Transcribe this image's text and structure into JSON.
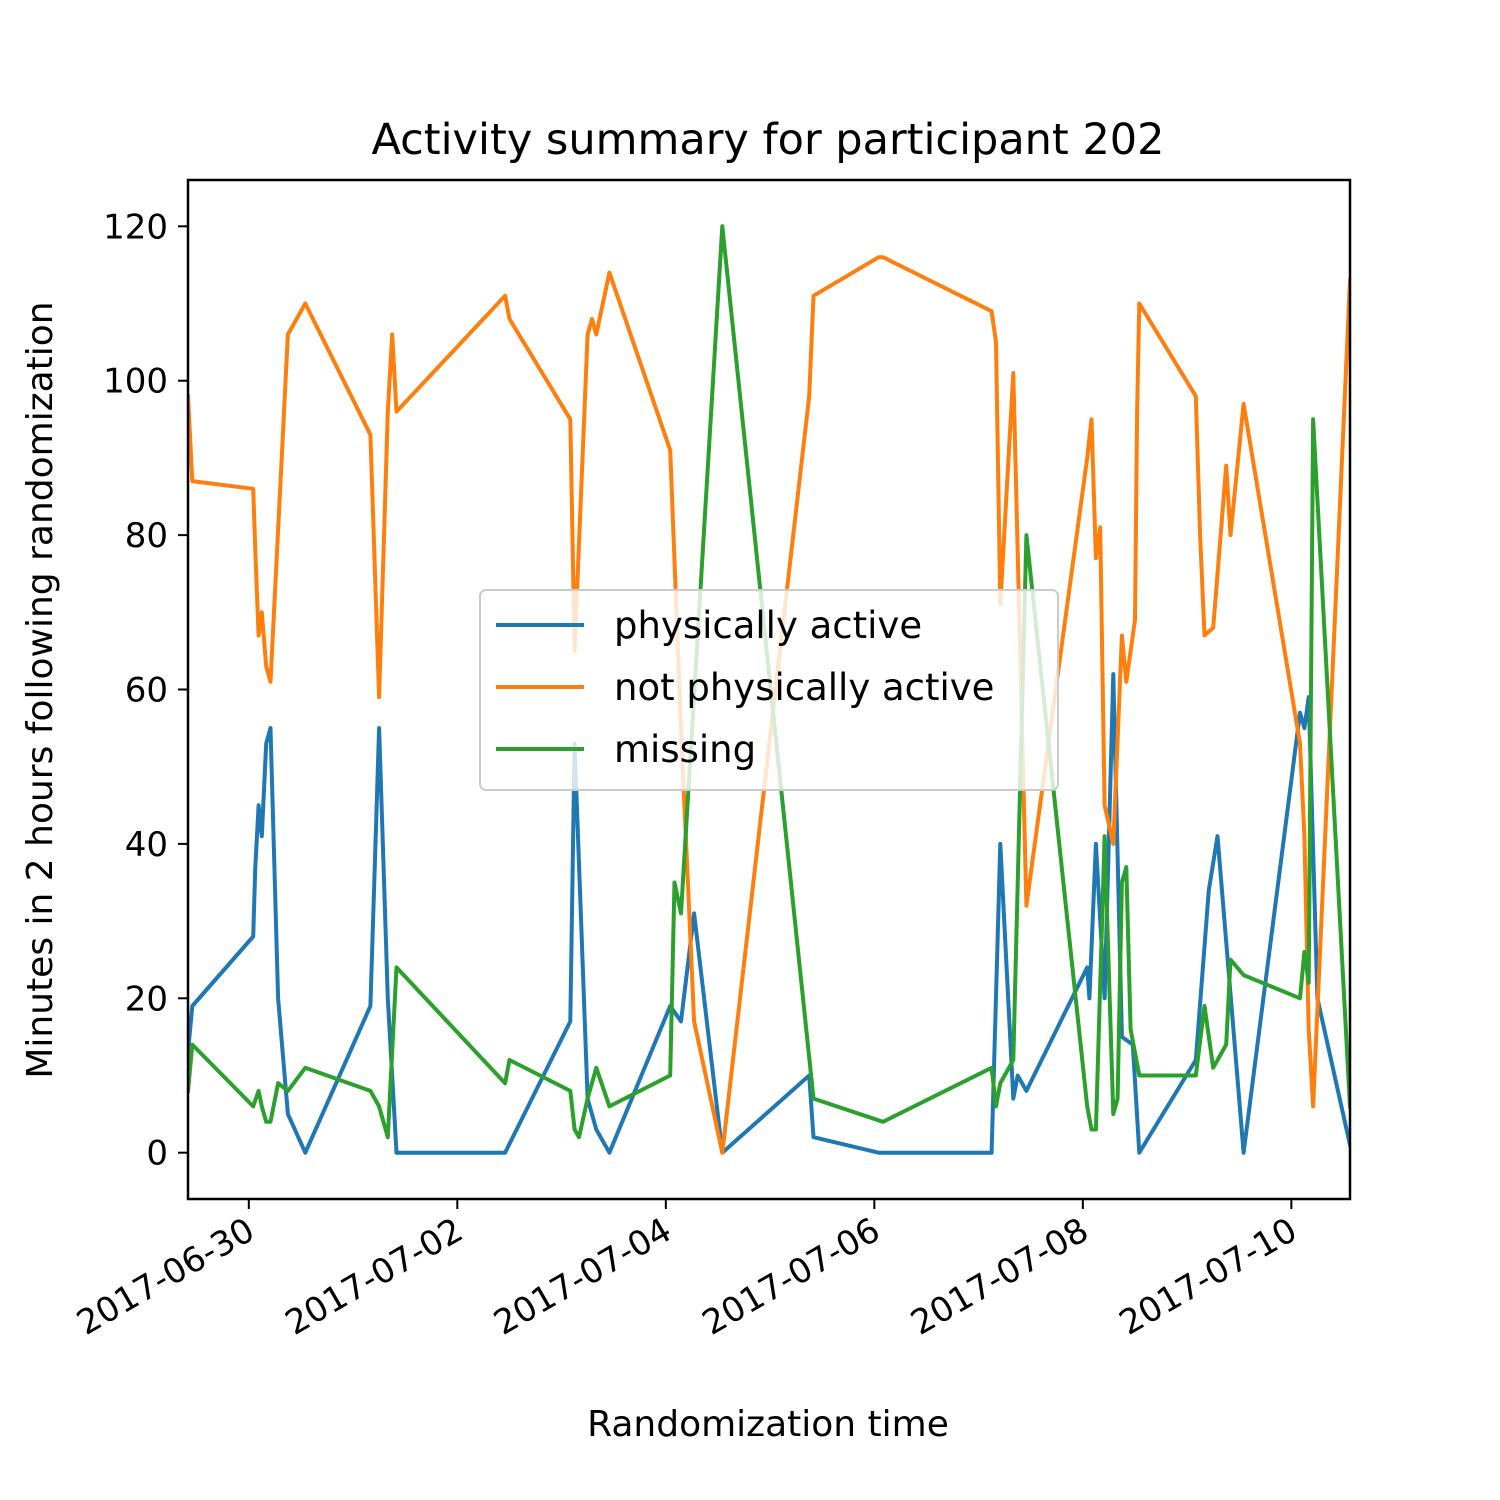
{
  "chart_data": {
    "type": "line",
    "title": "Activity summary for participant 202",
    "xlabel": "Randomization time",
    "ylabel": "Minutes in 2 hours following randomization",
    "xlim": [
      "2017-06-29T10:00",
      "2017-07-10T13:30"
    ],
    "ylim": [
      -6,
      126
    ],
    "x_ticks": [
      "2017-06-30",
      "2017-07-02",
      "2017-07-04",
      "2017-07-06",
      "2017-07-08",
      "2017-07-10"
    ],
    "y_ticks": [
      0,
      20,
      40,
      60,
      80,
      100,
      120
    ],
    "legend_position": "center",
    "grid": false,
    "series": [
      {
        "name": "physically active",
        "color": "#1f77b4",
        "points": [
          [
            "2017-06-29T10:00",
            13
          ],
          [
            "2017-06-29T11:00",
            19
          ],
          [
            "2017-06-30T01:00",
            28
          ],
          [
            "2017-06-30T01:30",
            37
          ],
          [
            "2017-06-30T02:15",
            45
          ],
          [
            "2017-06-30T03:00",
            41
          ],
          [
            "2017-06-30T04:00",
            53
          ],
          [
            "2017-06-30T05:00",
            55
          ],
          [
            "2017-06-30T06:45",
            20
          ],
          [
            "2017-06-30T09:00",
            5
          ],
          [
            "2017-06-30T13:00",
            0
          ],
          [
            "2017-07-01T04:00",
            19
          ],
          [
            "2017-07-01T06:00",
            55
          ],
          [
            "2017-07-01T08:00",
            20
          ],
          [
            "2017-07-01T10:00",
            0
          ],
          [
            "2017-07-02T11:00",
            0
          ],
          [
            "2017-07-03T02:00",
            17
          ],
          [
            "2017-07-03T03:00",
            53
          ],
          [
            "2017-07-03T06:00",
            7
          ],
          [
            "2017-07-03T08:00",
            3
          ],
          [
            "2017-07-03T11:00",
            0
          ],
          [
            "2017-07-04T01:00",
            19
          ],
          [
            "2017-07-04T03:30",
            17
          ],
          [
            "2017-07-04T06:30",
            31
          ],
          [
            "2017-07-04T13:00",
            0
          ],
          [
            "2017-07-05T09:00",
            10
          ],
          [
            "2017-07-05T10:00",
            2
          ],
          [
            "2017-07-06T01:00",
            0
          ],
          [
            "2017-07-07T03:00",
            0
          ],
          [
            "2017-07-07T05:00",
            40
          ],
          [
            "2017-07-07T08:00",
            7
          ],
          [
            "2017-07-07T09:00",
            10
          ],
          [
            "2017-07-07T11:00",
            8
          ],
          [
            "2017-07-08T01:00",
            24
          ],
          [
            "2017-07-08T01:30",
            20
          ],
          [
            "2017-07-08T03:00",
            40
          ],
          [
            "2017-07-08T05:00",
            20
          ],
          [
            "2017-07-08T07:00",
            62
          ],
          [
            "2017-07-08T09:00",
            15
          ],
          [
            "2017-07-08T11:30",
            14
          ],
          [
            "2017-07-08T13:00",
            0
          ],
          [
            "2017-07-09T02:00",
            12
          ],
          [
            "2017-07-09T05:00",
            34
          ],
          [
            "2017-07-09T07:00",
            41
          ],
          [
            "2017-07-09T13:00",
            0
          ],
          [
            "2017-07-10T02:00",
            57
          ],
          [
            "2017-07-10T03:00",
            55
          ],
          [
            "2017-07-10T04:00",
            59
          ],
          [
            "2017-07-10T06:00",
            20
          ],
          [
            "2017-07-10T13:30",
            1
          ]
        ]
      },
      {
        "name": "not physically active",
        "color": "#ff7f0e",
        "points": [
          [
            "2017-06-29T10:00",
            98
          ],
          [
            "2017-06-29T11:00",
            87
          ],
          [
            "2017-06-30T01:00",
            86
          ],
          [
            "2017-06-30T01:30",
            78
          ],
          [
            "2017-06-30T02:15",
            67
          ],
          [
            "2017-06-30T03:00",
            70
          ],
          [
            "2017-06-30T04:00",
            63
          ],
          [
            "2017-06-30T05:00",
            61
          ],
          [
            "2017-06-30T09:00",
            106
          ],
          [
            "2017-06-30T11:00",
            108
          ],
          [
            "2017-06-30T13:00",
            110
          ],
          [
            "2017-07-01T04:00",
            93
          ],
          [
            "2017-07-01T06:00",
            59
          ],
          [
            "2017-07-01T08:00",
            96
          ],
          [
            "2017-07-01T09:00",
            106
          ],
          [
            "2017-07-01T10:00",
            96
          ],
          [
            "2017-07-02T11:00",
            111
          ],
          [
            "2017-07-02T12:00",
            108
          ],
          [
            "2017-07-03T02:00",
            95
          ],
          [
            "2017-07-03T03:00",
            65
          ],
          [
            "2017-07-03T06:00",
            106
          ],
          [
            "2017-07-03T07:00",
            108
          ],
          [
            "2017-07-03T08:00",
            106
          ],
          [
            "2017-07-03T11:00",
            114
          ],
          [
            "2017-07-04T01:00",
            91
          ],
          [
            "2017-07-04T03:30",
            55
          ],
          [
            "2017-07-04T06:30",
            17
          ],
          [
            "2017-07-04T13:00",
            0
          ],
          [
            "2017-07-05T09:00",
            98
          ],
          [
            "2017-07-05T10:00",
            111
          ],
          [
            "2017-07-06T01:00",
            116
          ],
          [
            "2017-07-06T02:00",
            116
          ],
          [
            "2017-07-07T03:00",
            109
          ],
          [
            "2017-07-07T04:00",
            105
          ],
          [
            "2017-07-07T05:00",
            71
          ],
          [
            "2017-07-07T08:00",
            101
          ],
          [
            "2017-07-07T11:00",
            32
          ],
          [
            "2017-07-08T01:00",
            90
          ],
          [
            "2017-07-08T02:00",
            95
          ],
          [
            "2017-07-08T03:00",
            77
          ],
          [
            "2017-07-08T04:00",
            81
          ],
          [
            "2017-07-08T05:00",
            45
          ],
          [
            "2017-07-08T07:00",
            40
          ],
          [
            "2017-07-08T09:00",
            67
          ],
          [
            "2017-07-08T10:00",
            61
          ],
          [
            "2017-07-08T12:00",
            69
          ],
          [
            "2017-07-08T12:30",
            96
          ],
          [
            "2017-07-08T13:00",
            110
          ],
          [
            "2017-07-09T02:00",
            98
          ],
          [
            "2017-07-09T03:00",
            80
          ],
          [
            "2017-07-09T04:00",
            67
          ],
          [
            "2017-07-09T06:00",
            68
          ],
          [
            "2017-07-09T09:00",
            89
          ],
          [
            "2017-07-09T10:00",
            80
          ],
          [
            "2017-07-09T13:00",
            97
          ],
          [
            "2017-07-10T02:00",
            53
          ],
          [
            "2017-07-10T03:00",
            41
          ],
          [
            "2017-07-10T04:00",
            16
          ],
          [
            "2017-07-10T05:00",
            6
          ],
          [
            "2017-07-10T13:30",
            113
          ]
        ]
      },
      {
        "name": "missing",
        "color": "#2ca02c",
        "points": [
          [
            "2017-06-29T10:00",
            8
          ],
          [
            "2017-06-29T11:00",
            14
          ],
          [
            "2017-06-30T01:00",
            6
          ],
          [
            "2017-06-30T02:15",
            8
          ],
          [
            "2017-06-30T03:00",
            6
          ],
          [
            "2017-06-30T04:00",
            4
          ],
          [
            "2017-06-30T05:00",
            4
          ],
          [
            "2017-06-30T06:45",
            9
          ],
          [
            "2017-06-30T09:00",
            8
          ],
          [
            "2017-06-30T13:00",
            11
          ],
          [
            "2017-07-01T04:00",
            8
          ],
          [
            "2017-07-01T06:00",
            6
          ],
          [
            "2017-07-01T08:00",
            2
          ],
          [
            "2017-07-01T10:00",
            24
          ],
          [
            "2017-07-02T11:00",
            9
          ],
          [
            "2017-07-02T12:00",
            12
          ],
          [
            "2017-07-03T02:00",
            8
          ],
          [
            "2017-07-03T03:00",
            3
          ],
          [
            "2017-07-03T04:00",
            2
          ],
          [
            "2017-07-03T06:00",
            7
          ],
          [
            "2017-07-03T08:00",
            11
          ],
          [
            "2017-07-03T11:00",
            6
          ],
          [
            "2017-07-04T01:00",
            10
          ],
          [
            "2017-07-04T02:00",
            35
          ],
          [
            "2017-07-04T03:30",
            31
          ],
          [
            "2017-07-04T13:00",
            120
          ],
          [
            "2017-07-05T10:00",
            7
          ],
          [
            "2017-07-06T02:00",
            4
          ],
          [
            "2017-07-07T03:00",
            11
          ],
          [
            "2017-07-07T04:00",
            6
          ],
          [
            "2017-07-07T05:00",
            9
          ],
          [
            "2017-07-07T08:00",
            12
          ],
          [
            "2017-07-07T11:00",
            80
          ],
          [
            "2017-07-08T01:00",
            6
          ],
          [
            "2017-07-08T02:00",
            3
          ],
          [
            "2017-07-08T03:00",
            3
          ],
          [
            "2017-07-08T05:00",
            41
          ],
          [
            "2017-07-08T07:00",
            5
          ],
          [
            "2017-07-08T08:00",
            7
          ],
          [
            "2017-07-08T09:00",
            35
          ],
          [
            "2017-07-08T10:00",
            37
          ],
          [
            "2017-07-08T11:00",
            16
          ],
          [
            "2017-07-08T13:00",
            10
          ],
          [
            "2017-07-09T02:00",
            10
          ],
          [
            "2017-07-09T04:00",
            19
          ],
          [
            "2017-07-09T06:00",
            11
          ],
          [
            "2017-07-09T09:00",
            14
          ],
          [
            "2017-07-09T10:00",
            25
          ],
          [
            "2017-07-09T13:00",
            23
          ],
          [
            "2017-07-10T02:00",
            20
          ],
          [
            "2017-07-10T03:00",
            26
          ],
          [
            "2017-07-10T04:00",
            22
          ],
          [
            "2017-07-10T05:00",
            95
          ],
          [
            "2017-07-10T13:30",
            6
          ]
        ]
      }
    ]
  }
}
